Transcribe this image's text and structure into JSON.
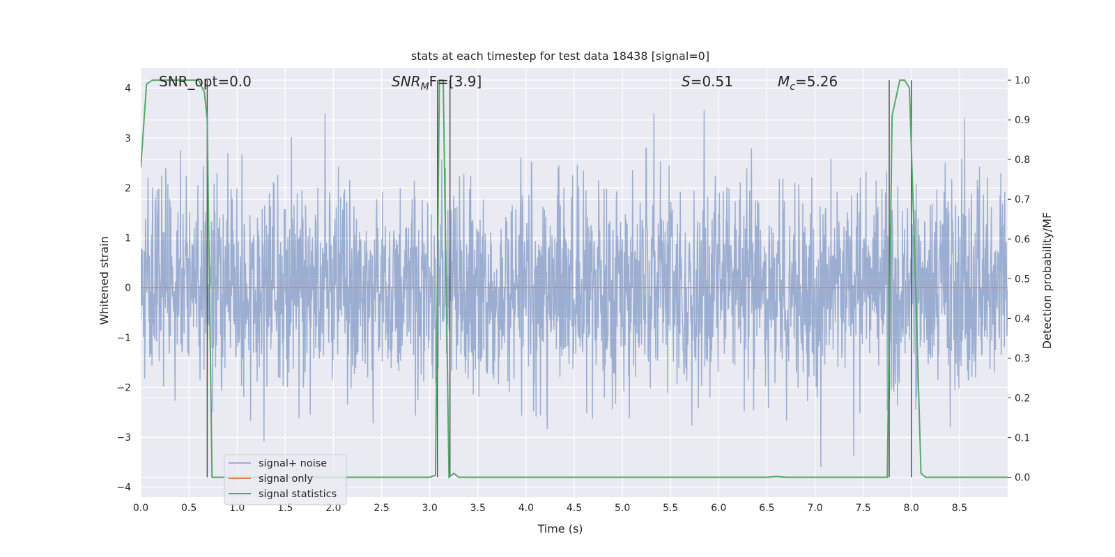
{
  "chart_data": {
    "type": "line",
    "title": "stats at each timestep for test data 18438 [signal=0]",
    "xlabel": "Time (s)",
    "ylabel": "Whitened strain",
    "ylabel_right": "Detection probability/MF",
    "xlim": [
      0.0,
      9.0
    ],
    "ylim": [
      -4.2,
      4.4
    ],
    "ylim_right": [
      -0.05,
      1.03
    ],
    "x_ticks": [
      "0.0",
      "0.5",
      "1.0",
      "1.5",
      "2.0",
      "2.5",
      "3.0",
      "3.5",
      "4.0",
      "4.5",
      "5.0",
      "5.5",
      "6.0",
      "6.5",
      "7.0",
      "7.5",
      "8.0",
      "8.5"
    ],
    "y_ticks": [
      "4",
      "3",
      "2",
      "1",
      "0",
      "−1",
      "−2",
      "−3",
      "−4"
    ],
    "y_ticks_right": [
      "1.0",
      "0.9",
      "0.8",
      "0.7",
      "0.6",
      "0.5",
      "0.4",
      "0.3",
      "0.2",
      "0.1",
      "0.0"
    ],
    "grid": true,
    "legend_position": "bottom-left",
    "annotations": {
      "snr_opt": "SNR_opt=0.0",
      "snr_mf_main": "SNR",
      "snr_mf_sub": "M",
      "snr_mf_rest": "F=[3.9]",
      "s_main": "S",
      "s_rest": "=0.51",
      "mc_main": "M",
      "mc_sub": "c",
      "mc_rest": "=5.26"
    },
    "series": [
      {
        "name": "signal+ noise",
        "color": "#4c72b0",
        "description_values": "noise strain, approx. range -3.6 to 4.0"
      },
      {
        "name": "signal only",
        "color": "#dd8452",
        "x": [
          0.0,
          9.0
        ],
        "y": [
          0.0,
          0.0
        ]
      },
      {
        "name": "signal statistics",
        "color": "#55a868",
        "x": [
          0.0,
          0.06,
          0.12,
          0.6,
          0.66,
          0.69,
          0.74,
          3.0,
          3.06,
          3.1,
          3.14,
          3.2,
          3.25,
          3.3,
          6.5,
          6.6,
          6.7,
          7.75,
          7.8,
          7.88,
          7.93,
          7.98,
          8.03,
          8.1,
          8.15,
          9.0
        ],
        "y": [
          0.78,
          0.99,
          1.0,
          1.0,
          0.97,
          0.9,
          0.0,
          0.0,
          0.005,
          1.0,
          1.0,
          0.0,
          0.01,
          0.0,
          0.0,
          0.002,
          0.0,
          0.0,
          0.91,
          1.0,
          1.0,
          0.98,
          0.6,
          0.01,
          0.0,
          0.0
        ]
      }
    ],
    "vlines": [
      0.69,
      3.08,
      3.21,
      7.77,
      8.0
    ]
  }
}
